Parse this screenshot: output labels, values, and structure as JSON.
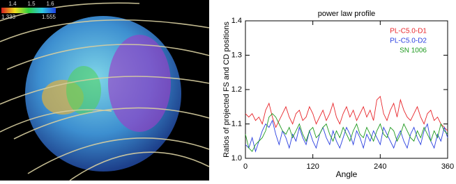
{
  "image": {
    "colorbar": {
      "tick_labels": [
        "1.4",
        "1.5",
        "1.6"
      ],
      "range_labels": [
        "1.333",
        "1.555"
      ]
    }
  },
  "chart_data": {
    "type": "line",
    "title": "power law profile",
    "x_label": "Angle",
    "y_label": "Ratios of projected FS and CD positions",
    "x": [
      0,
      6,
      12,
      18,
      24,
      30,
      36,
      42,
      48,
      54,
      60,
      66,
      72,
      78,
      84,
      90,
      96,
      102,
      108,
      114,
      120,
      126,
      132,
      138,
      144,
      150,
      156,
      162,
      168,
      174,
      180,
      186,
      192,
      198,
      204,
      210,
      216,
      222,
      228,
      234,
      240,
      246,
      252,
      258,
      264,
      270,
      276,
      282,
      288,
      294,
      300,
      306,
      312,
      318,
      324,
      330,
      336,
      342,
      348,
      354,
      360
    ],
    "series": [
      {
        "name": "PL-C5.0-D1",
        "color": "#e8252a",
        "values": [
          1.13,
          1.12,
          1.13,
          1.11,
          1.12,
          1.1,
          1.14,
          1.16,
          1.12,
          1.09,
          1.11,
          1.13,
          1.15,
          1.12,
          1.1,
          1.13,
          1.14,
          1.11,
          1.12,
          1.15,
          1.13,
          1.1,
          1.12,
          1.14,
          1.11,
          1.13,
          1.16,
          1.12,
          1.1,
          1.13,
          1.15,
          1.12,
          1.14,
          1.11,
          1.13,
          1.15,
          1.12,
          1.14,
          1.11,
          1.17,
          1.18,
          1.13,
          1.11,
          1.14,
          1.16,
          1.12,
          1.17,
          1.14,
          1.12,
          1.11,
          1.13,
          1.15,
          1.12,
          1.1,
          1.13,
          1.14,
          1.11,
          1.12,
          1.1,
          1.09,
          1.08
        ]
      },
      {
        "name": "PL-C5.0-D2",
        "color": "#2a3fe0",
        "values": [
          1.04,
          1.03,
          1.06,
          1.02,
          1.05,
          1.08,
          1.1,
          1.09,
          1.11,
          1.07,
          1.04,
          1.08,
          1.06,
          1.03,
          1.07,
          1.05,
          1.09,
          1.06,
          1.04,
          1.08,
          1.05,
          1.03,
          1.07,
          1.09,
          1.06,
          1.04,
          1.08,
          1.05,
          1.03,
          1.06,
          1.09,
          1.07,
          1.04,
          1.08,
          1.06,
          1.03,
          1.07,
          1.05,
          1.08,
          1.06,
          1.04,
          1.09,
          1.07,
          1.05,
          1.03,
          1.06,
          1.08,
          1.05,
          1.03,
          1.07,
          1.09,
          1.06,
          1.04,
          1.08,
          1.1,
          1.05,
          1.03,
          1.07,
          1.05,
          1.09,
          1.06
        ]
      },
      {
        "name": "SN 1006",
        "color": "#1f9a1f",
        "values": [
          1.07,
          1.03,
          1.02,
          1.04,
          1.05,
          1.06,
          1.08,
          1.12,
          1.13,
          1.12,
          1.1,
          1.08,
          1.07,
          1.09,
          1.06,
          1.08,
          1.1,
          1.07,
          1.05,
          1.08,
          1.09,
          1.06,
          1.07,
          1.09,
          1.1,
          1.07,
          1.05,
          1.08,
          1.06,
          1.09,
          1.07,
          1.05,
          1.08,
          1.1,
          1.07,
          1.06,
          1.09,
          1.07,
          1.05,
          1.08,
          1.1,
          1.07,
          1.06,
          1.09,
          1.08,
          1.05,
          1.07,
          1.1,
          1.08,
          1.06,
          1.05,
          1.08,
          1.06,
          1.09,
          1.07,
          1.05,
          1.08,
          1.06,
          1.1,
          1.08,
          1.07
        ]
      }
    ],
    "xlim": [
      0,
      360
    ],
    "xticks": [
      0,
      120,
      240,
      360
    ],
    "ylim": [
      1.0,
      1.4
    ],
    "yticks": [
      {
        "value": 1.0,
        "label": "1.0"
      },
      1.1,
      1.2,
      1.3,
      1.4
    ],
    "legend": "upper right"
  }
}
